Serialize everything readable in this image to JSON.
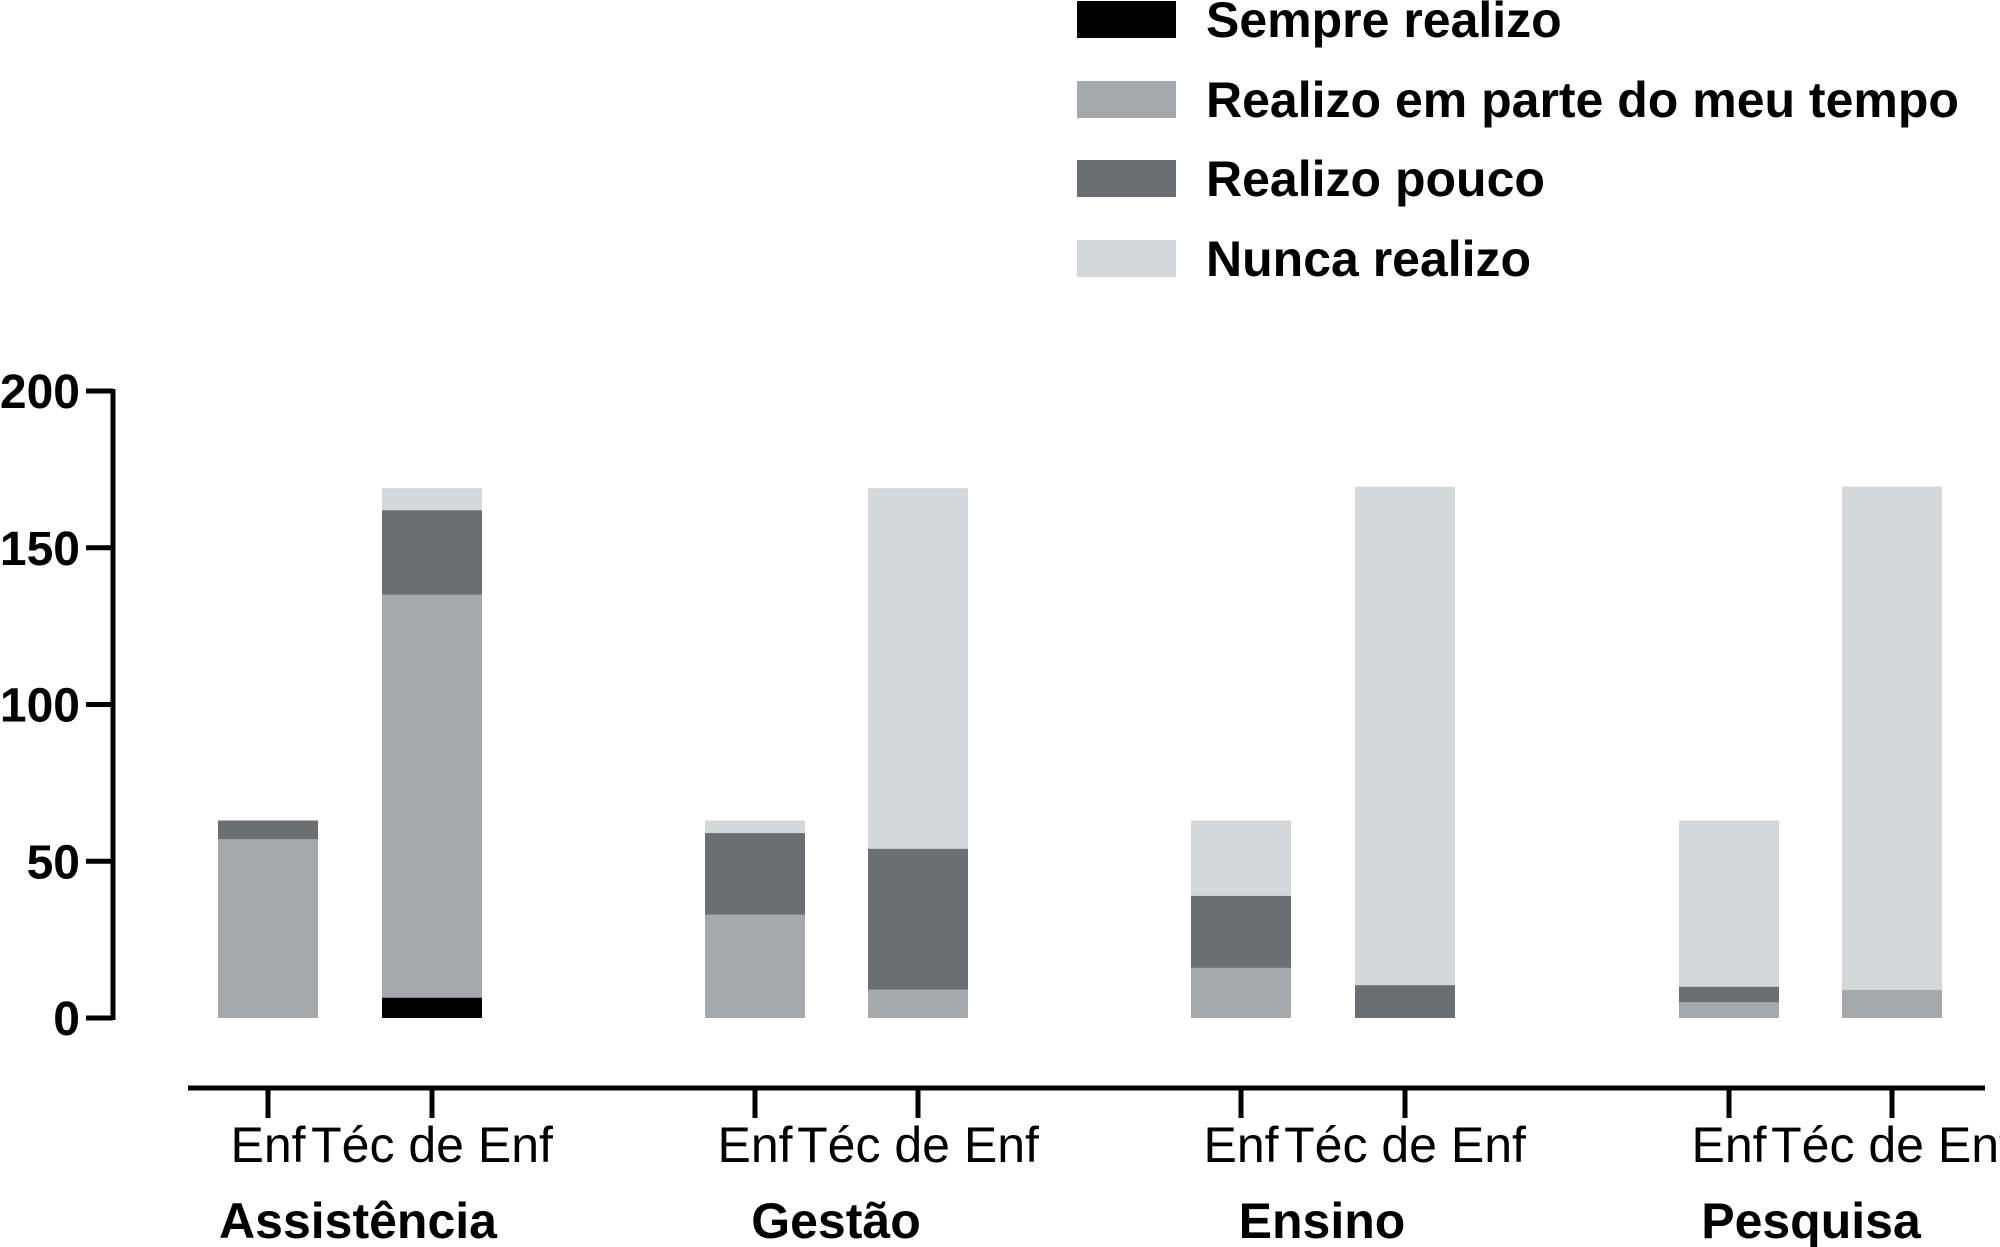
{
  "chart_data": {
    "type": "bar",
    "stacked": true,
    "groups": [
      {
        "label": "Assistência",
        "categories": [
          "Enf",
          "Téc de Enf"
        ]
      },
      {
        "label": "Gestão",
        "categories": [
          "Enf",
          "Téc de Enf"
        ]
      },
      {
        "label": "Ensino",
        "categories": [
          "Enf",
          "Téc de Enf"
        ]
      },
      {
        "label": "Pesquisa",
        "categories": [
          "Enf",
          "Téc de Enf"
        ]
      }
    ],
    "series": [
      {
        "name": "Sempre realizo",
        "color": "#000000",
        "values": [
          0,
          6.5,
          0,
          0,
          0,
          0,
          0,
          0
        ]
      },
      {
        "name": "Realizo em parte do meu tempo",
        "color": "#a7a8ab",
        "values": [
          57,
          128.5,
          33,
          9,
          16,
          0,
          5,
          9
        ]
      },
      {
        "name": "Realizo pouco",
        "color": "#6d6e72",
        "values": [
          6,
          27,
          26,
          45,
          23,
          10.5,
          5,
          0
        ]
      },
      {
        "name": "Nunca realizo",
        "color": "#d6d7d9",
        "values": [
          0,
          7,
          4,
          115,
          24,
          159,
          53,
          160.5
        ]
      }
    ],
    "yticks": [
      0,
      50,
      100,
      150,
      200
    ],
    "ylim": [
      0,
      200
    ],
    "grid": false,
    "legend_position": "top-right"
  }
}
